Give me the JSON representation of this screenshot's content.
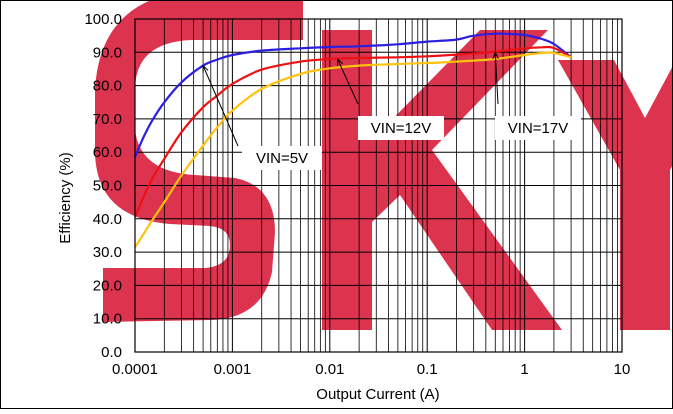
{
  "chart_data": {
    "type": "line",
    "title": "",
    "xlabel": "Output Current (A)",
    "ylabel": "Efficiency (%)",
    "xscale": "log",
    "xlim": [
      0.0001,
      10
    ],
    "ylim": [
      0,
      100
    ],
    "x_ticks": [
      "0.0001",
      "0.001",
      "0.01",
      "0.1",
      "1",
      "10"
    ],
    "y_ticks": [
      "0.0",
      "10.0",
      "20.0",
      "30.0",
      "40.0",
      "50.0",
      "60.0",
      "70.0",
      "80.0",
      "90.0",
      "100.0"
    ],
    "grid": true,
    "watermark": "SKY",
    "watermark_color": "#d81e3c",
    "series": [
      {
        "name": "VIN=5V",
        "color": "#2a1fe0",
        "x": [
          0.0001,
          0.00012,
          0.00015,
          0.0002,
          0.0003,
          0.0005,
          0.0007,
          0.001,
          0.002,
          0.005,
          0.01,
          0.02,
          0.05,
          0.1,
          0.2,
          0.3,
          0.5,
          0.7,
          1,
          1.5,
          2,
          3
        ],
        "y": [
          58.5,
          64,
          69.5,
          75,
          81,
          86,
          87.8,
          89.2,
          90.5,
          91.2,
          91.6,
          91.8,
          92.4,
          93.2,
          93.8,
          95,
          95.6,
          95.5,
          95.2,
          94,
          92.5,
          88.5
        ]
      },
      {
        "name": "VIN=12V",
        "color": "#ee1111",
        "x": [
          0.0001,
          0.00012,
          0.00015,
          0.0002,
          0.0003,
          0.0005,
          0.0007,
          0.001,
          0.002,
          0.005,
          0.01,
          0.02,
          0.05,
          0.1,
          0.2,
          0.5,
          1,
          1.5,
          2,
          3
        ],
        "y": [
          40.5,
          46,
          52,
          58,
          66,
          73.5,
          77,
          80.5,
          84.8,
          87.2,
          88,
          88.3,
          88.5,
          88.8,
          89.3,
          90.2,
          91.2,
          91.5,
          91.3,
          88.5
        ]
      },
      {
        "name": "VIN=17V",
        "color": "#ffc20e",
        "x": [
          0.0001,
          0.00012,
          0.00015,
          0.0002,
          0.0003,
          0.0005,
          0.0007,
          0.001,
          0.002,
          0.005,
          0.01,
          0.02,
          0.05,
          0.1,
          0.2,
          0.5,
          1,
          1.5,
          2,
          3
        ],
        "y": [
          31.5,
          35,
          39.5,
          45,
          53,
          62,
          67.5,
          72.5,
          79,
          83.5,
          85.2,
          86,
          86.5,
          86.8,
          87.2,
          88,
          89.2,
          89.8,
          89.8,
          88.5
        ]
      }
    ],
    "annotations": [
      {
        "label": "VIN=5V",
        "points_to": [
          0.0005,
          86
        ]
      },
      {
        "label": "VIN=12V",
        "points_to": [
          0.012,
          88
        ]
      },
      {
        "label": "VIN=17V",
        "points_to": [
          0.5,
          90
        ]
      }
    ]
  }
}
